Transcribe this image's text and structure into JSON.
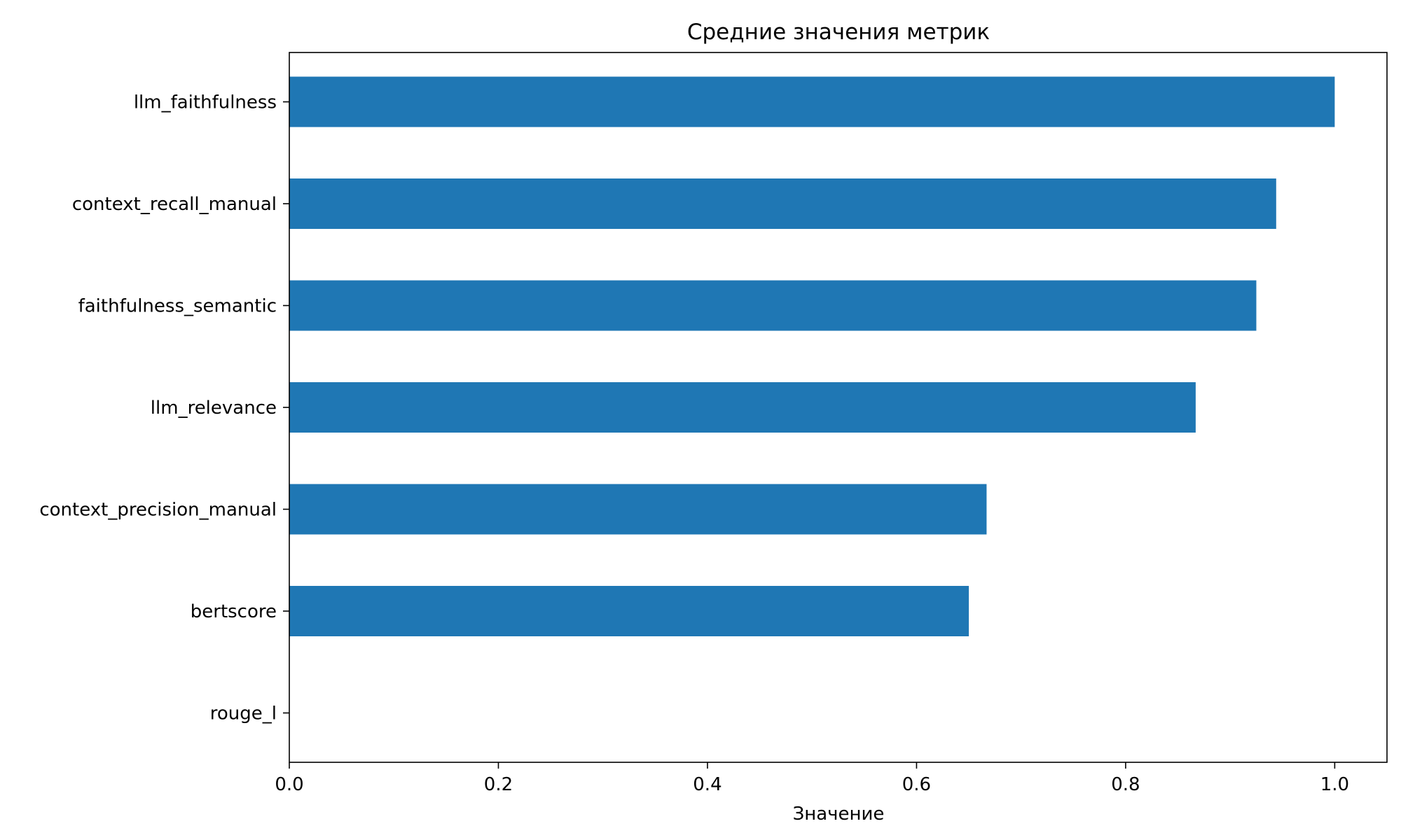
{
  "chart_data": {
    "type": "bar",
    "orientation": "horizontal",
    "title": "Средние значения метрик",
    "xlabel": "Значение",
    "ylabel": "",
    "categories": [
      "llm_faithfulness",
      "context_recall_manual",
      "faithfulness_semantic",
      "llm_relevance",
      "context_precision_manual",
      "bertscore",
      "rouge_l"
    ],
    "values": [
      1.0,
      0.944,
      0.925,
      0.867,
      0.667,
      0.65,
      0.0
    ],
    "xlim": [
      0,
      1.05
    ],
    "xticks": [
      0.0,
      0.2,
      0.4,
      0.6,
      0.8,
      1.0
    ],
    "xtick_labels": [
      "0.0",
      "0.2",
      "0.4",
      "0.6",
      "0.8",
      "1.0"
    ],
    "bar_color": "#1f77b4",
    "grid": false,
    "legend": "none"
  }
}
